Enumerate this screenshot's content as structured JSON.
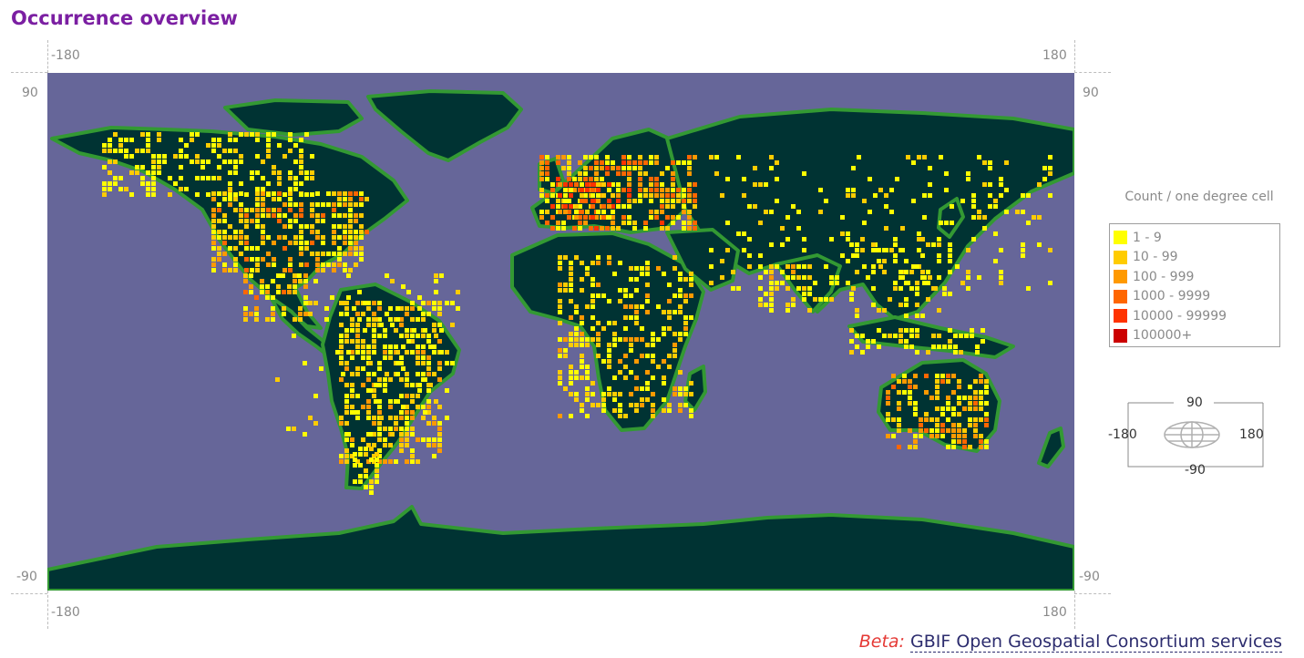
{
  "page": {
    "title": "Occurrence overview"
  },
  "axes": {
    "top_left": "-180",
    "top_right": "180",
    "bottom_left": "-180",
    "bottom_right": "180",
    "left_top": "90",
    "left_bottom": "-90",
    "right_top": "90",
    "right_bottom": "-90"
  },
  "legend": {
    "title": "Count / one degree cell",
    "items": [
      {
        "label": "1 - 9",
        "color": "#ffff00"
      },
      {
        "label": "10 - 99",
        "color": "#ffcc00"
      },
      {
        "label": "100 - 999",
        "color": "#ff9900"
      },
      {
        "label": "1000 - 9999",
        "color": "#ff6600"
      },
      {
        "label": "10000 - 99999",
        "color": "#ff3300"
      },
      {
        "label": "100000+",
        "color": "#cc0000"
      }
    ]
  },
  "navigator": {
    "top": "90",
    "bottom": "-90",
    "left": "-180",
    "right": "180"
  },
  "colors": {
    "ocean": "#666699",
    "land": "#003333",
    "border": "#339933"
  },
  "footer": {
    "beta": "Beta:",
    "service": "GBIF Open Geospatial Consortium services"
  }
}
